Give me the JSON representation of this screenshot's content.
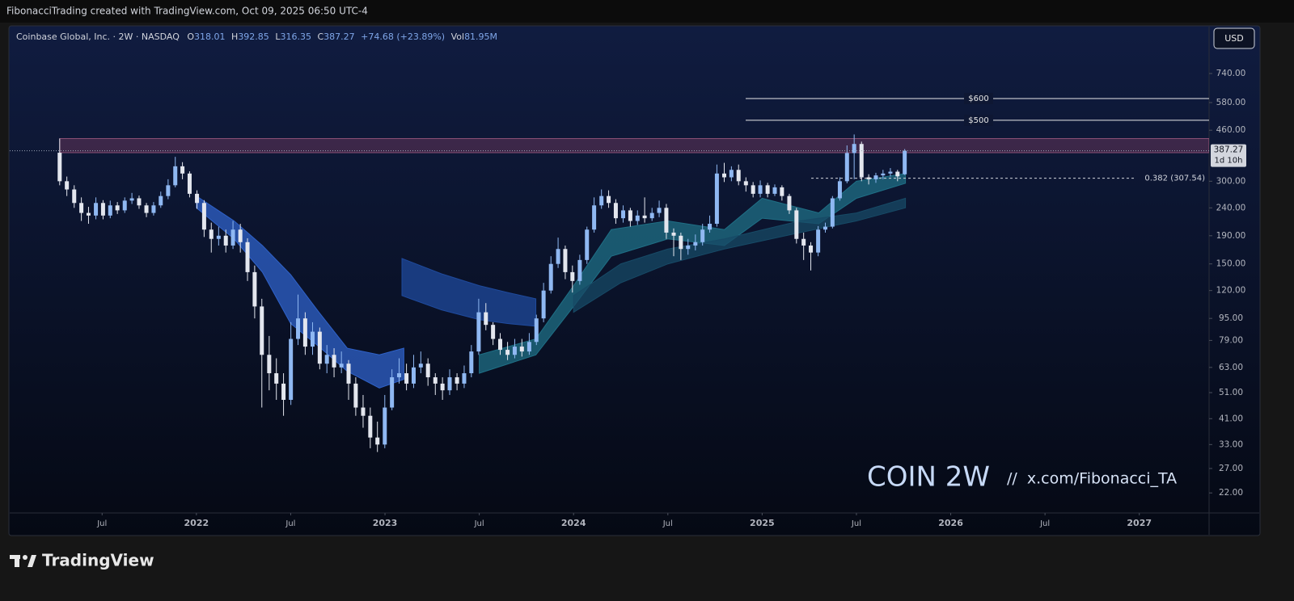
{
  "header": "FibonacciTrading created with TradingView.com, Oct 09, 2025 06:50 UTC-4",
  "chart_data": {
    "type": "candlestick",
    "legend": {
      "symbol": "Coinbase Global, Inc. · 2W · NASDAQ",
      "open_label": "O",
      "high_label": "H",
      "low_label": "L",
      "close_label": "C",
      "change": "+74.68 (+23.89%)",
      "volume_label": "Vol",
      "volume": "81.95M"
    },
    "currency": "USD",
    "countdown": "1d 10h",
    "watermark": "COIN 2W",
    "watermark_link": "//  x.com/Fibonacci_TA",
    "log_scale": true,
    "grid": false,
    "up_color": "#8fb8f2",
    "down_color": "#e3e6ee",
    "xlim": [
      2021.01,
      2027.37
    ],
    "ylim": [
      18.6,
      1096
    ],
    "xticks": [
      {
        "value": 2021.5,
        "label": "Jul"
      },
      2022,
      {
        "value": 2022.5,
        "label": "Jul"
      },
      2023,
      {
        "value": 2023.5,
        "label": "Jul"
      },
      2024,
      {
        "value": 2024.5,
        "label": "Jul"
      },
      2025,
      {
        "value": 2025.5,
        "label": "Jul"
      },
      2026,
      {
        "value": 2026.5,
        "label": "Jul"
      },
      2027
    ],
    "yticks": [
      {
        "value": 22,
        "label": "22.00"
      },
      {
        "value": 27,
        "label": "27.00"
      },
      {
        "value": 33,
        "label": "33.00"
      },
      {
        "value": 41,
        "label": "41.00"
      },
      {
        "value": 51,
        "label": "51.00"
      },
      {
        "value": 63,
        "label": "63.00"
      },
      {
        "value": 79,
        "label": "79.00"
      },
      {
        "value": 95,
        "label": "95.00"
      },
      {
        "value": 120,
        "label": "120.00"
      },
      {
        "value": 150,
        "label": "150.00"
      },
      {
        "value": 190,
        "label": "190.00"
      },
      {
        "value": 240,
        "label": "240.00"
      },
      {
        "value": 300,
        "label": "300.00"
      },
      {
        "value": 460,
        "label": "460.00"
      },
      {
        "value": 580,
        "label": "580.00"
      },
      {
        "value": 740,
        "label": "740.00"
      }
    ],
    "x": [
      2021.275,
      2021.313,
      2021.352,
      2021.39,
      2021.428,
      2021.467,
      2021.505,
      2021.543,
      2021.581,
      2021.62,
      2021.658,
      2021.696,
      2021.735,
      2021.773,
      2021.811,
      2021.85,
      2021.888,
      2021.926,
      2021.964,
      2022.003,
      2022.041,
      2022.079,
      2022.118,
      2022.156,
      2022.194,
      2022.233,
      2022.271,
      2022.309,
      2022.347,
      2022.386,
      2022.424,
      2022.462,
      2022.501,
      2022.539,
      2022.577,
      2022.616,
      2022.654,
      2022.692,
      2022.73,
      2022.769,
      2022.807,
      2022.845,
      2022.884,
      2022.922,
      2022.96,
      2022.999,
      2023.037,
      2023.075,
      2023.114,
      2023.152,
      2023.19,
      2023.228,
      2023.267,
      2023.305,
      2023.343,
      2023.382,
      2023.42,
      2023.458,
      2023.497,
      2023.535,
      2023.573,
      2023.611,
      2023.65,
      2023.688,
      2023.726,
      2023.765,
      2023.803,
      2023.841,
      2023.88,
      2023.918,
      2023.956,
      2023.994,
      2024.033,
      2024.071,
      2024.109,
      2024.148,
      2024.186,
      2024.224,
      2024.263,
      2024.301,
      2024.339,
      2024.377,
      2024.416,
      2024.454,
      2024.492,
      2024.531,
      2024.569,
      2024.607,
      2024.646,
      2024.684,
      2024.722,
      2024.76,
      2024.799,
      2024.837,
      2024.875,
      2024.914,
      2024.952,
      2024.99,
      2025.029,
      2025.067,
      2025.105,
      2025.144,
      2025.182,
      2025.22,
      2025.258,
      2025.297,
      2025.335,
      2025.373,
      2025.412,
      2025.45,
      2025.488,
      2025.527,
      2025.565,
      2025.603,
      2025.641,
      2025.68,
      2025.718,
      2025.756
    ],
    "open": [
      381,
      300,
      280,
      250,
      230,
      225,
      250,
      225,
      245,
      235,
      255,
      260,
      245,
      230,
      245,
      265,
      290,
      340,
      320,
      270,
      250,
      200,
      185,
      190,
      175,
      200,
      180,
      140,
      105,
      70,
      60,
      55,
      48,
      80,
      95,
      75,
      85,
      65,
      70,
      63,
      65,
      55,
      45,
      42,
      35,
      33,
      45,
      58,
      60,
      55,
      63,
      65,
      58,
      55,
      52,
      58,
      55,
      60,
      72,
      100,
      90,
      80,
      73,
      70,
      75,
      72,
      78,
      95,
      120,
      150,
      170,
      140,
      130,
      155,
      200,
      245,
      265,
      250,
      220,
      235,
      215,
      225,
      220,
      230,
      240,
      195,
      190,
      170,
      175,
      180,
      200,
      210,
      320,
      310,
      330,
      300,
      290,
      270,
      290,
      270,
      285,
      265,
      235,
      185,
      175,
      165,
      200,
      205,
      260,
      300,
      380,
      410,
      310,
      305,
      315,
      320,
      325,
      318.01
    ],
    "high": [
      429,
      312,
      290,
      262,
      242,
      262,
      256,
      255,
      252,
      262,
      272,
      266,
      250,
      252,
      275,
      305,
      368,
      352,
      326,
      278,
      256,
      212,
      205,
      200,
      215,
      210,
      186,
      148,
      112,
      82,
      68,
      60,
      92,
      116,
      100,
      92,
      88,
      76,
      74,
      72,
      67,
      58,
      50,
      45,
      40,
      50,
      62,
      68,
      65,
      70,
      72,
      68,
      60,
      58,
      62,
      60,
      64,
      76,
      112,
      108,
      92,
      84,
      78,
      80,
      80,
      84,
      98,
      128,
      160,
      187,
      175,
      148,
      162,
      205,
      262,
      280,
      278,
      258,
      245,
      240,
      235,
      262,
      240,
      255,
      248,
      202,
      195,
      185,
      192,
      210,
      225,
      345,
      350,
      340,
      345,
      310,
      298,
      302,
      296,
      292,
      290,
      270,
      240,
      195,
      180,
      206,
      212,
      265,
      310,
      405,
      444,
      418,
      318,
      322,
      330,
      335,
      330,
      392.85
    ],
    "low": [
      290,
      265,
      240,
      215,
      210,
      218,
      218,
      220,
      228,
      230,
      248,
      238,
      222,
      225,
      240,
      258,
      285,
      305,
      262,
      238,
      188,
      165,
      175,
      165,
      170,
      165,
      130,
      95,
      45,
      52,
      48,
      42,
      46,
      76,
      70,
      70,
      62,
      60,
      58,
      60,
      48,
      42,
      38,
      32,
      31,
      32,
      44,
      55,
      52,
      53,
      60,
      54,
      50,
      48,
      50,
      52,
      53,
      58,
      70,
      86,
      76,
      70,
      67,
      68,
      69,
      70,
      76,
      92,
      117,
      145,
      132,
      118,
      126,
      150,
      195,
      238,
      240,
      210,
      212,
      205,
      208,
      212,
      215,
      222,
      185,
      160,
      155,
      162,
      168,
      175,
      195,
      205,
      298,
      300,
      290,
      275,
      262,
      262,
      262,
      265,
      255,
      228,
      178,
      155,
      142,
      160,
      195,
      202,
      255,
      295,
      305,
      300,
      292,
      296,
      305,
      312,
      300,
      316.35
    ],
    "close": [
      300,
      280,
      250,
      230,
      225,
      250,
      225,
      245,
      235,
      255,
      260,
      245,
      230,
      245,
      265,
      290,
      340,
      320,
      270,
      250,
      200,
      185,
      190,
      175,
      200,
      180,
      140,
      105,
      70,
      60,
      55,
      48,
      80,
      95,
      75,
      85,
      65,
      70,
      63,
      65,
      55,
      45,
      42,
      35,
      33,
      45,
      58,
      60,
      55,
      63,
      65,
      58,
      55,
      52,
      58,
      55,
      60,
      72,
      100,
      90,
      80,
      73,
      70,
      75,
      72,
      78,
      95,
      120,
      150,
      170,
      140,
      130,
      155,
      200,
      245,
      265,
      250,
      220,
      235,
      215,
      225,
      220,
      230,
      240,
      195,
      190,
      170,
      175,
      180,
      200,
      210,
      320,
      310,
      330,
      300,
      290,
      270,
      290,
      270,
      285,
      265,
      235,
      185,
      175,
      165,
      200,
      205,
      260,
      300,
      380,
      410,
      310,
      305,
      315,
      320,
      325,
      312.59,
      387.27
    ],
    "bands": [
      {
        "color": "#2f62c9",
        "x": [
          2022.0,
          2022.2,
          2022.35,
          2022.5,
          2022.65,
          2022.8,
          2022.97,
          2023.1
        ],
        "upper": [
          265,
          215,
          175,
          137,
          100,
          74,
          70,
          74
        ],
        "lower": [
          240,
          185,
          140,
          91,
          75,
          61,
          53,
          57
        ]
      },
      {
        "color": "#1f4a9c",
        "x": [
          2023.09,
          2023.3,
          2023.5,
          2023.65,
          2023.8
        ],
        "upper": [
          157,
          138,
          125,
          118,
          112
        ],
        "lower": [
          115,
          102,
          94,
          91,
          89
        ]
      },
      {
        "color": "#1f6f85",
        "x": [
          2023.5,
          2023.8,
          2024.0,
          2024.2,
          2024.5,
          2024.8,
          2025.0,
          2025.3,
          2025.5,
          2025.76
        ],
        "upper": [
          70,
          80,
          125,
          200,
          215,
          200,
          260,
          230,
          300,
          320
        ],
        "lower": [
          60,
          70,
          105,
          160,
          185,
          175,
          220,
          210,
          260,
          295
        ]
      },
      {
        "color": "#174a66",
        "x": [
          2024.0,
          2024.25,
          2024.5,
          2024.8,
          2025.2,
          2025.5,
          2025.76
        ],
        "upper": [
          115,
          150,
          170,
          185,
          215,
          230,
          260
        ],
        "lower": [
          100,
          128,
          150,
          170,
          195,
          215,
          240
        ]
      }
    ],
    "zone": [
      381,
      429
    ],
    "levels": [
      {
        "value": 600,
        "label": "$600"
      },
      {
        "value": 500,
        "label": "$500"
      }
    ],
    "fib_level": {
      "value": 307.54,
      "label": "0.382 (307.54)"
    }
  },
  "footer": {
    "brand": "TradingView"
  }
}
